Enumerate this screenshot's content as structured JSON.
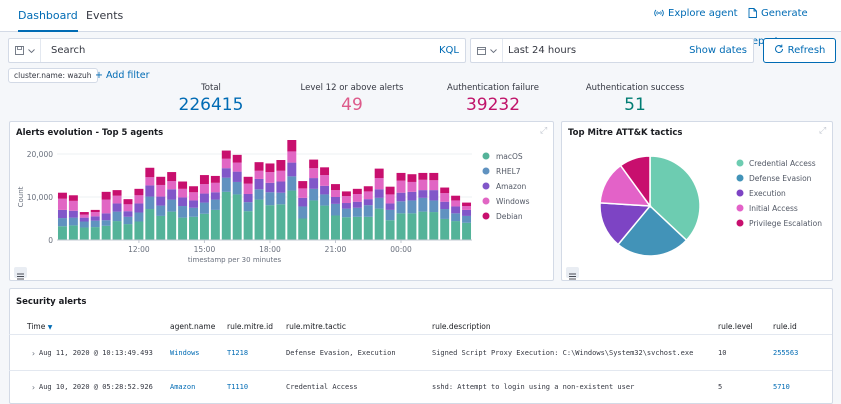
{
  "tabs": [
    {
      "label": "Dashboard",
      "active": true
    },
    {
      "label": "Events",
      "active": false
    }
  ],
  "header_actions": {
    "explore_agent": "Explore agent",
    "generate_report": "Generate report"
  },
  "search": {
    "placeholder": "Search",
    "kql": "KQL"
  },
  "date": {
    "value": "Last 24 hours",
    "show_dates": "Show dates"
  },
  "refresh_label": "Refresh",
  "filter_pill": "cluster.name: wazuh",
  "add_filter": "+ Add filter",
  "metrics": [
    {
      "label": "Total",
      "value": "226415",
      "color": "#006bb4"
    },
    {
      "label": "Level 12 or above alerts",
      "value": "49",
      "color": "#dd5a8a"
    },
    {
      "label": "Authentication failure",
      "value": "39232",
      "color": "#c0146a"
    },
    {
      "label": "Authentication success",
      "value": "51",
      "color": "#017d73"
    }
  ],
  "alerts_evolution": {
    "title": "Alerts evolution - Top 5 agents",
    "chart_data": {
      "type": "bar",
      "stacked": true,
      "ylabel": "Count",
      "xlabel": "timestamp per 30 minutes",
      "ylim": [
        0,
        20000
      ],
      "yticks": [
        "0",
        "10,000",
        "20,000"
      ],
      "xticks": [
        {
          "label": "12:00",
          "index": 7
        },
        {
          "label": "15:00",
          "index": 13
        },
        {
          "label": "18:00",
          "index": 19
        },
        {
          "label": "21:00",
          "index": 25
        },
        {
          "label": "00:00",
          "index": 31
        }
      ],
      "series": [
        {
          "name": "macOS",
          "color": "#54b399",
          "values": [
            3200,
            3400,
            2900,
            3000,
            3300,
            4400,
            3700,
            4300,
            7200,
            5600,
            6600,
            5200,
            5400,
            6100,
            7000,
            11200,
            10600,
            6700,
            9400,
            8100,
            8300,
            11500,
            5000,
            9200,
            8000,
            5700,
            5300,
            5400,
            5400,
            7300,
            4600,
            6200,
            6200,
            6600,
            6500,
            4900,
            4400,
            4000
          ]
        },
        {
          "name": "RHEL7",
          "color": "#6092c0",
          "values": [
            1900,
            1800,
            1400,
            1500,
            1300,
            2200,
            1700,
            2100,
            2900,
            2400,
            2800,
            2700,
            2100,
            2600,
            2400,
            3300,
            2900,
            2100,
            2400,
            3000,
            2700,
            3300,
            2800,
            2700,
            2600,
            2700,
            2000,
            2100,
            2700,
            2500,
            2400,
            2800,
            3000,
            3200,
            2700,
            2300,
            1800,
            1600
          ]
        },
        {
          "name": "Amazon",
          "color": "#8157c9",
          "values": [
            1900,
            1600,
            900,
            1000,
            1600,
            1900,
            1300,
            2100,
            2600,
            2100,
            2400,
            2000,
            1700,
            2100,
            1700,
            2200,
            2400,
            1900,
            2400,
            2200,
            2600,
            3200,
            2000,
            2500,
            2000,
            1600,
            1300,
            1400,
            1400,
            2000,
            1500,
            2000,
            2000,
            1800,
            2400,
            1700,
            1600,
            1400
          ]
        },
        {
          "name": "Windows",
          "color": "#e166c4",
          "values": [
            2600,
            2300,
            700,
            1000,
            3200,
            1800,
            1600,
            1900,
            1900,
            2700,
            1900,
            2000,
            1900,
            2200,
            2200,
            2200,
            2100,
            2400,
            1900,
            2500,
            2500,
            2600,
            2200,
            2300,
            2500,
            1600,
            1600,
            1800,
            1800,
            2600,
            2100,
            2800,
            2300,
            2400,
            2300,
            2000,
            1400,
            900
          ]
        },
        {
          "name": "Debian",
          "color": "#c80f6e",
          "values": [
            1400,
            1300,
            600,
            500,
            1800,
            1300,
            1200,
            1500,
            2200,
            1900,
            2100,
            1700,
            1400,
            2100,
            1600,
            1900,
            1800,
            1600,
            2000,
            2000,
            2500,
            2700,
            1700,
            2000,
            1800,
            1400,
            1100,
            1200,
            1200,
            2200,
            1800,
            1800,
            1800,
            1600,
            1700,
            1300,
            1100,
            800
          ]
        }
      ]
    }
  },
  "mitre_tactics": {
    "title": "Top Mitre ATT&K tactics",
    "chart_data": {
      "type": "pie",
      "slices": [
        {
          "label": "Credential Access",
          "value": 37,
          "color": "#6dccb1"
        },
        {
          "label": "Defense Evasion",
          "value": 24,
          "color": "#4293b8"
        },
        {
          "label": "Execution",
          "value": 15,
          "color": "#7d44c4"
        },
        {
          "label": "Initial Access",
          "value": 14,
          "color": "#e362c8"
        },
        {
          "label": "Privilege Escalation",
          "value": 10,
          "color": "#c80f6e"
        }
      ]
    }
  },
  "security_alerts": {
    "title": "Security alerts",
    "columns": [
      "Time",
      "agent.name",
      "rule.mitre.id",
      "rule.mitre.tactic",
      "rule.description",
      "rule.level",
      "rule.id"
    ],
    "rows": [
      {
        "time": "Aug 11, 2020 @ 10:13:49.493",
        "agent": "Windows",
        "mitre_id": "T1218",
        "tactic": "Defense Evasion, Execution",
        "description": "Signed Script Proxy Execution: C:\\Windows\\System32\\svchost.exe",
        "level": "10",
        "rule_id": "255563"
      },
      {
        "time": "Aug 10, 2020 @ 05:28:52.926",
        "agent": "Amazon",
        "mitre_id": "T1110",
        "tactic": "Credential Access",
        "description": "sshd: Attempt to login using a non-existent user",
        "level": "5",
        "rule_id": "5710"
      }
    ]
  }
}
